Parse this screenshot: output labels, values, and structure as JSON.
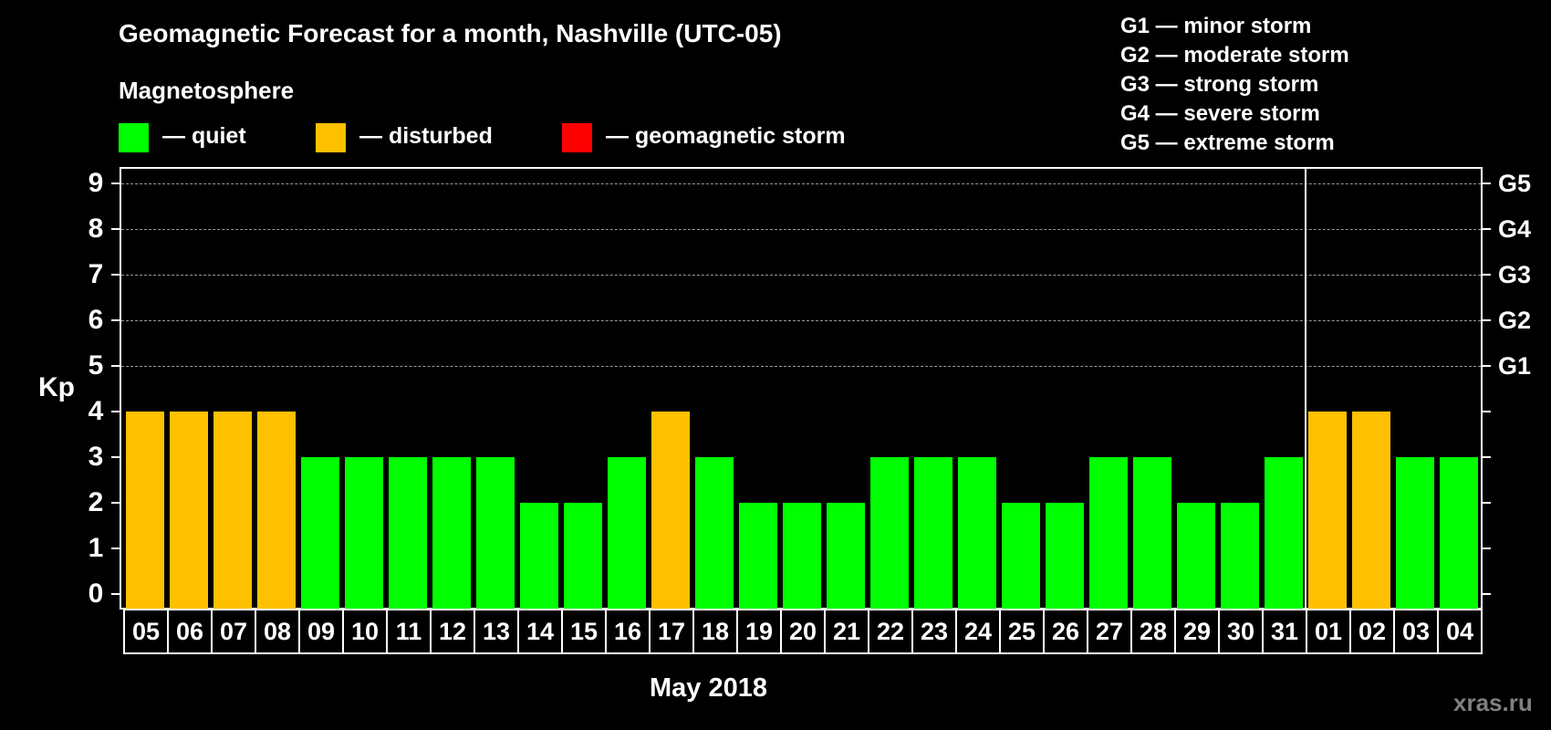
{
  "header": {
    "title": "Geomagnetic Forecast for a month, Nashville (UTC-05)",
    "subtitle": "Magnetosphere"
  },
  "legend": [
    {
      "label": "— quiet",
      "color": "#00ff00"
    },
    {
      "label": "— disturbed",
      "color": "#ffc000"
    },
    {
      "label": "— geomagnetic storm",
      "color": "#ff0000"
    }
  ],
  "g_scale": [
    "G1 — minor storm",
    "G2 — moderate storm",
    "G3 — strong storm",
    "G4 — severe storm",
    "G5 — extreme storm"
  ],
  "axis": {
    "y_label": "Kp",
    "x_label": "May 2018",
    "y_ticks": [
      "0",
      "1",
      "2",
      "3",
      "4",
      "5",
      "6",
      "7",
      "8",
      "9"
    ],
    "right_labels": {
      "5": "G1",
      "6": "G2",
      "7": "G3",
      "8": "G4",
      "9": "G5"
    }
  },
  "watermark": "xras.ru",
  "colors": {
    "quiet": "#00ff00",
    "disturbed": "#ffc000",
    "storm": "#ff0000",
    "grid": "#9a9a9a",
    "background": "#000000"
  },
  "chart_data": {
    "type": "bar",
    "title": "Geomagnetic Forecast for a month, Nashville (UTC-05)",
    "subtitle": "Magnetosphere",
    "xlabel": "May 2018",
    "ylabel": "Kp",
    "ylim": [
      0,
      9
    ],
    "grid": "dashed horizontal at Kp 5-9",
    "legend_position": "top",
    "categories": [
      "05",
      "06",
      "07",
      "08",
      "09",
      "10",
      "11",
      "12",
      "13",
      "14",
      "15",
      "16",
      "17",
      "18",
      "19",
      "20",
      "21",
      "22",
      "23",
      "24",
      "25",
      "26",
      "27",
      "28",
      "29",
      "30",
      "31",
      "01",
      "02",
      "03",
      "04"
    ],
    "values": [
      4,
      4,
      4,
      4,
      3,
      3,
      3,
      3,
      3,
      2,
      2,
      3,
      4,
      3,
      2,
      2,
      2,
      3,
      3,
      3,
      2,
      2,
      3,
      3,
      2,
      2,
      3,
      4,
      4,
      3,
      3
    ],
    "status": [
      "disturbed",
      "disturbed",
      "disturbed",
      "disturbed",
      "quiet",
      "quiet",
      "quiet",
      "quiet",
      "quiet",
      "quiet",
      "quiet",
      "quiet",
      "disturbed",
      "quiet",
      "quiet",
      "quiet",
      "quiet",
      "quiet",
      "quiet",
      "quiet",
      "quiet",
      "quiet",
      "quiet",
      "quiet",
      "quiet",
      "quiet",
      "quiet",
      "disturbed",
      "disturbed",
      "quiet",
      "quiet"
    ],
    "month_separator_after": "31",
    "right_axis_labels": {
      "5": "G1",
      "6": "G2",
      "7": "G3",
      "8": "G4",
      "9": "G5"
    }
  }
}
